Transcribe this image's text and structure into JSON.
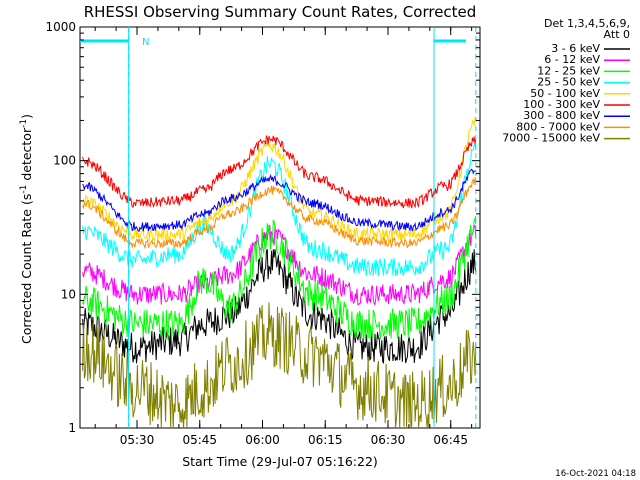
{
  "chart_data": {
    "type": "line",
    "title": "RHESSI Observing Summary Count Rates, Corrected",
    "xlabel": "Start Time (29-Jul-07 05:16:22)",
    "ylabel_prefix": "Corrected Count Rate (s",
    "ylabel_sup1": "-1",
    "ylabel_mid": " detector",
    "ylabel_sup2": "-1",
    "ylabel_suffix": ")",
    "y_scale": "log",
    "ylim": [
      1,
      1000
    ],
    "xlim": [
      "05:16:22",
      "06:52:00"
    ],
    "y_ticks": [
      "1",
      "10",
      "100",
      "1000"
    ],
    "x_ticks": [
      "05:30",
      "05:45",
      "06:00",
      "06:15",
      "06:30",
      "06:45"
    ],
    "legend_header": [
      "Det 1,3,4,5,6,9,",
      "Att 0"
    ],
    "legend_position": "right",
    "timestamp": "16-Oct-2021 04:18",
    "annotations": [
      {
        "text": "N",
        "time": "05:30"
      }
    ],
    "night_markers": [
      {
        "time": "05:28",
        "color": "#00e5ff"
      },
      {
        "time": "06:41",
        "color": "#00e5ff"
      },
      {
        "time": "06:51",
        "color": "#00e5ff"
      }
    ],
    "x_key_times": [
      "05:17",
      "05:30",
      "05:40",
      "05:46",
      "05:52",
      "06:02",
      "06:12",
      "06:24",
      "06:36",
      "06:44",
      "06:51"
    ],
    "series": [
      {
        "name": "3 - 6 keV",
        "color": "#000000",
        "values": [
          6,
          4,
          4.5,
          6,
          7,
          17,
          7,
          4,
          4,
          7,
          17
        ]
      },
      {
        "name": "6 - 12 keV",
        "color": "#ff00ff",
        "values": [
          15,
          10,
          10,
          12,
          14,
          28,
          14,
          10,
          10,
          13,
          28
        ]
      },
      {
        "name": "12 - 25 keV",
        "color": "#00ff00",
        "values": [
          9,
          6,
          6,
          13,
          8,
          28,
          10,
          6,
          6,
          9,
          30
        ]
      },
      {
        "name": "25 - 50 keV",
        "color": "#00ffff",
        "values": [
          30,
          18,
          20,
          33,
          20,
          95,
          22,
          16,
          16,
          22,
          120
        ]
      },
      {
        "name": "50 - 100 keV",
        "color": "#ffd700",
        "values": [
          50,
          28,
          28,
          35,
          50,
          130,
          40,
          28,
          28,
          40,
          190
        ]
      },
      {
        "name": "100 - 300 keV",
        "color": "#ff0000",
        "values": [
          100,
          48,
          50,
          60,
          85,
          145,
          75,
          50,
          48,
          65,
          140
        ]
      },
      {
        "name": "300 - 800 keV",
        "color": "#0000ff",
        "values": [
          65,
          32,
          33,
          40,
          52,
          72,
          48,
          34,
          32,
          42,
          85
        ]
      },
      {
        "name": "800 - 7000 keV",
        "color": "#ff8c00",
        "values": [
          48,
          24,
          24,
          30,
          40,
          60,
          36,
          25,
          24,
          32,
          70
        ]
      },
      {
        "name": "7000 - 15000 keV",
        "color": "#808000",
        "values": [
          4,
          2,
          1.5,
          2,
          3,
          5,
          3.5,
          2,
          1.5,
          2,
          3.5
        ]
      }
    ]
  }
}
